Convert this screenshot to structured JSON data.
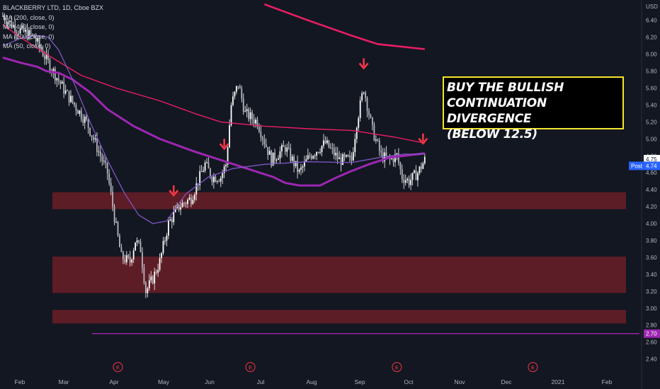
{
  "legend": {
    "title": "BLACKBERRY LTD, 1D, Cboe BZX",
    "ma_lines": [
      "MA (200, close, 0)",
      "MA (400, close, 0)",
      "MA (100, close, 0)",
      "MA (50, close, 0)"
    ]
  },
  "callout": {
    "lines": [
      "BUY THE BULLISH",
      "CONTINUATION DIVERGENCE",
      "(BELOW 12.5)"
    ]
  },
  "price_axis": {
    "currency": "USD",
    "last_label": "4.75",
    "post_tag": "Post",
    "post_value": "4.74",
    "line_value": "2.70"
  },
  "earnings_marker": "E",
  "colors": {
    "background": "#131722",
    "candle": "#e6e6e6",
    "zone": "#6b1f27",
    "ma200": "#e91e63",
    "ma400": "#e91e63",
    "ma100": "#9c27b0",
    "ma50": "#7e57c2",
    "arrow": "#f23645",
    "hline": "#9c27b0",
    "post_tag": "#2962ff"
  },
  "chart_data": {
    "type": "candlestick",
    "title": "BLACKBERRY LTD, 1D, Cboe BZX",
    "y_ticks": [
      2.4,
      2.6,
      2.8,
      3.0,
      3.2,
      3.4,
      3.6,
      3.8,
      4.0,
      4.2,
      4.4,
      4.6,
      4.8,
      5.0,
      5.2,
      5.4,
      5.6,
      5.8,
      6.0,
      6.2,
      6.4
    ],
    "ylim": [
      2.33,
      6.59
    ],
    "x_ticks": [
      "Feb",
      "Mar",
      "Apr",
      "May",
      "Jun",
      "Jul",
      "Aug",
      "Sep",
      "Oct",
      "Nov",
      "Dec",
      "2021",
      "Feb"
    ],
    "support_zones": [
      [
        4.17,
        4.37
      ],
      [
        3.18,
        3.61
      ],
      [
        2.82,
        2.98
      ]
    ],
    "horizontal_line": 2.7,
    "price_path": [
      [
        0,
        6.45
      ],
      [
        8,
        6.3
      ],
      [
        18,
        6.2
      ],
      [
        26,
        5.9
      ],
      [
        36,
        5.55
      ],
      [
        48,
        5.2
      ],
      [
        60,
        4.6
      ],
      [
        65,
        3.95
      ],
      [
        68,
        3.6
      ],
      [
        73,
        3.55
      ],
      [
        76,
        3.8
      ],
      [
        79,
        3.7
      ],
      [
        82,
        3.2
      ],
      [
        86,
        3.35
      ],
      [
        90,
        3.55
      ],
      [
        95,
        4.0
      ],
      [
        101,
        4.2
      ],
      [
        108,
        4.3
      ],
      [
        112,
        4.5
      ],
      [
        116,
        4.7
      ],
      [
        120,
        4.55
      ],
      [
        125,
        4.55
      ],
      [
        128,
        4.7
      ],
      [
        131,
        5.4
      ],
      [
        135,
        5.65
      ],
      [
        139,
        5.3
      ],
      [
        146,
        5.2
      ],
      [
        154,
        4.75
      ],
      [
        162,
        4.9
      ],
      [
        170,
        4.6
      ],
      [
        176,
        4.8
      ],
      [
        185,
        4.95
      ],
      [
        193,
        4.75
      ],
      [
        200,
        4.75
      ],
      [
        203,
        5.2
      ],
      [
        207,
        5.6
      ],
      [
        212,
        5.1
      ],
      [
        217,
        4.8
      ],
      [
        222,
        4.75
      ],
      [
        226,
        4.8
      ],
      [
        229,
        4.55
      ],
      [
        233,
        4.5
      ],
      [
        238,
        4.6
      ],
      [
        242,
        4.75
      ]
    ],
    "moving_averages": [
      {
        "name": "MA (200, close, 0)",
        "values": [
          [
            150,
            6.59
          ],
          [
            175,
            6.4
          ],
          [
            200,
            6.22
          ],
          [
            215,
            6.12
          ],
          [
            242,
            6.06
          ]
        ]
      },
      {
        "name": "MA (400, close, 0)",
        "values": [
          [
            0,
            6.35
          ],
          [
            10,
            6.2
          ],
          [
            25,
            6.0
          ],
          [
            45,
            5.75
          ],
          [
            65,
            5.6
          ],
          [
            90,
            5.45
          ],
          [
            110,
            5.3
          ],
          [
            125,
            5.2
          ],
          [
            150,
            5.15
          ],
          [
            175,
            5.12
          ],
          [
            200,
            5.1
          ],
          [
            225,
            5.02
          ],
          [
            242,
            4.95
          ]
        ]
      },
      {
        "name": "MA (100, close, 0)",
        "values": [
          [
            0,
            5.96
          ],
          [
            10,
            5.9
          ],
          [
            20,
            5.85
          ],
          [
            25,
            5.8
          ],
          [
            32,
            5.78
          ],
          [
            40,
            5.7
          ],
          [
            50,
            5.55
          ],
          [
            60,
            5.35
          ],
          [
            75,
            5.15
          ],
          [
            90,
            5.0
          ],
          [
            110,
            4.85
          ],
          [
            125,
            4.75
          ],
          [
            140,
            4.65
          ],
          [
            155,
            4.55
          ],
          [
            162,
            4.48
          ],
          [
            170,
            4.45
          ],
          [
            182,
            4.45
          ],
          [
            192,
            4.55
          ],
          [
            200,
            4.62
          ],
          [
            210,
            4.7
          ],
          [
            222,
            4.78
          ],
          [
            242,
            4.83
          ]
        ]
      },
      {
        "name": "MA (50, close, 0)",
        "values": [
          [
            0,
            6.1
          ],
          [
            12,
            6.2
          ],
          [
            20,
            6.22
          ],
          [
            26,
            6.2
          ],
          [
            32,
            6.05
          ],
          [
            40,
            5.7
          ],
          [
            50,
            5.2
          ],
          [
            60,
            4.75
          ],
          [
            70,
            4.35
          ],
          [
            78,
            4.1
          ],
          [
            86,
            4.0
          ],
          [
            94,
            4.03
          ],
          [
            105,
            4.35
          ],
          [
            118,
            4.55
          ],
          [
            132,
            4.65
          ],
          [
            150,
            4.7
          ],
          [
            175,
            4.73
          ],
          [
            200,
            4.72
          ],
          [
            216,
            4.78
          ],
          [
            230,
            4.82
          ],
          [
            242,
            4.82
          ]
        ]
      }
    ],
    "signal_arrows_at_days": [
      98,
      127,
      207,
      241
    ],
    "earnings_at_days": [
      66,
      142,
      226,
      304
    ]
  }
}
